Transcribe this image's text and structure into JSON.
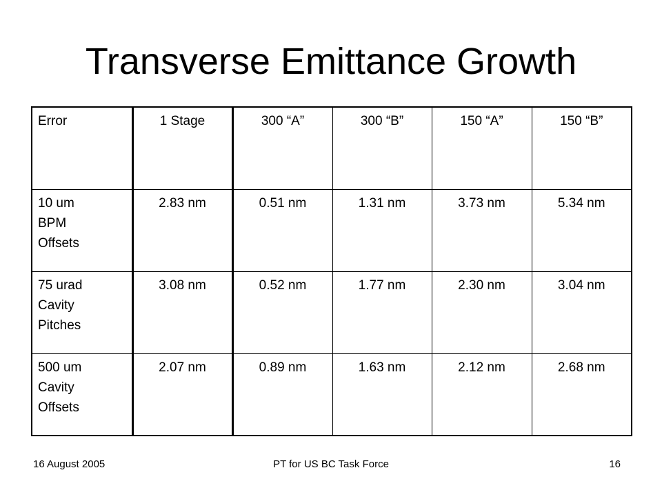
{
  "slide": {
    "title": "Transverse Emittance Growth"
  },
  "table": {
    "headers": [
      "Error",
      "1 Stage",
      "300 “A”",
      "300 “B”",
      "150 “A”",
      "150 “B”"
    ],
    "rows": [
      {
        "label_lines": [
          "10 um",
          "BPM",
          "Offsets"
        ],
        "values": [
          "2.83 nm",
          "0.51 nm",
          "1.31 nm",
          "3.73 nm",
          "5.34 nm"
        ]
      },
      {
        "label_lines": [
          "75 urad",
          "Cavity",
          "Pitches"
        ],
        "values": [
          "3.08 nm",
          "0.52 nm",
          "1.77 nm",
          "2.30 nm",
          "3.04 nm"
        ]
      },
      {
        "label_lines": [
          "500 um",
          "Cavity",
          "Offsets"
        ],
        "values": [
          "2.07 nm",
          "0.89 nm",
          "1.63 nm",
          "2.12 nm",
          "2.68 nm"
        ]
      }
    ]
  },
  "footer": {
    "date": "16 August 2005",
    "center": "PT for US BC Task Force",
    "page_number": "16"
  }
}
